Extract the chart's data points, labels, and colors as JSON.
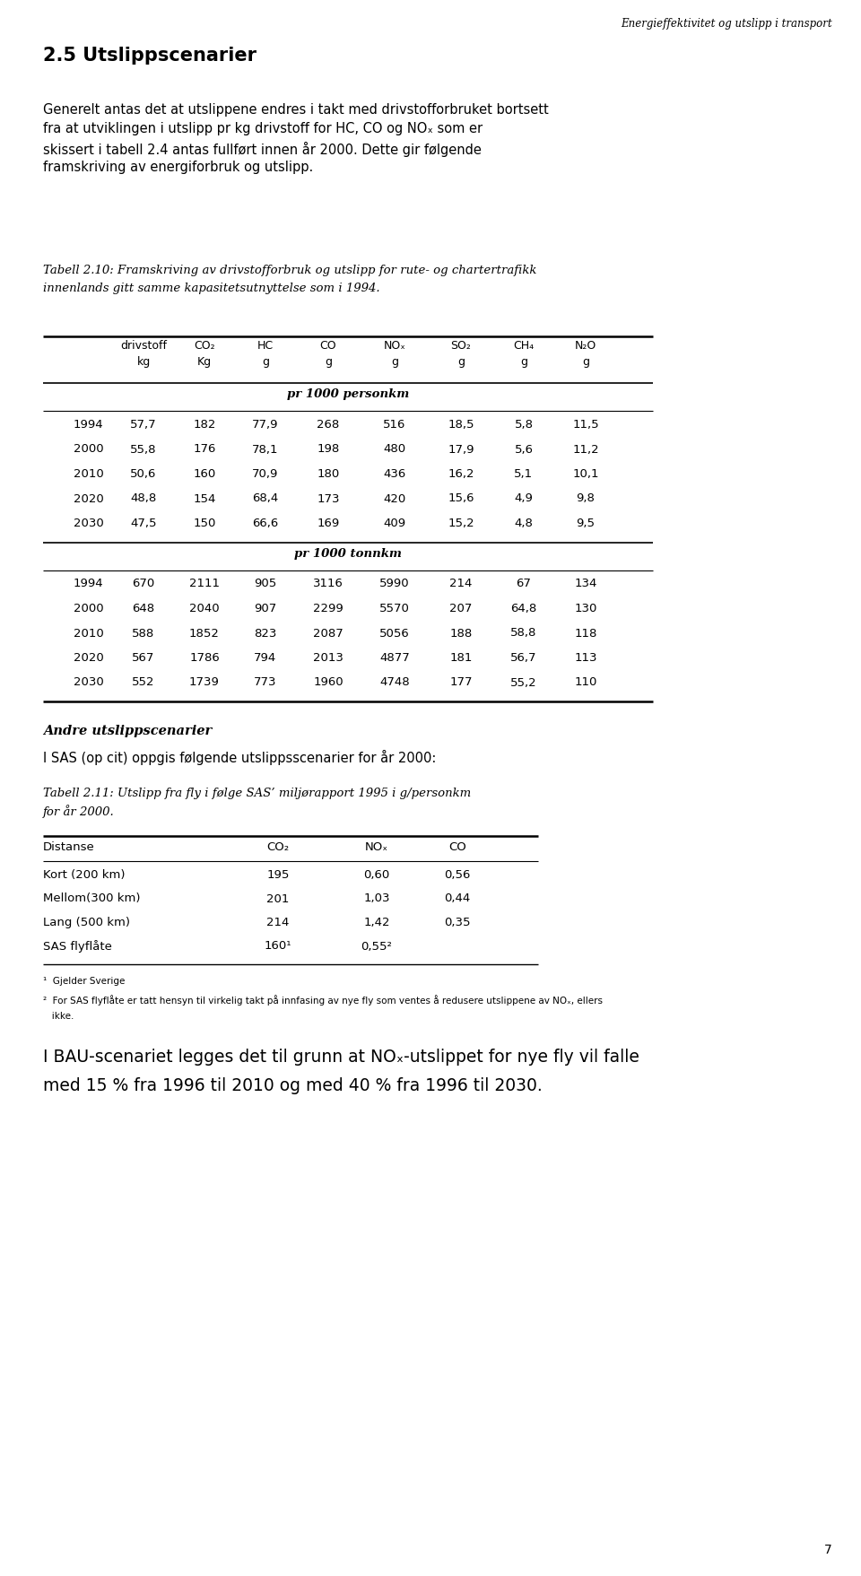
{
  "header_italic": "Energieffektivitet og utslipp i transport",
  "section_title": "2.5 Utslippscenarier",
  "para1_lines": [
    "Generelt antas det at utslippene endres i takt med drivstofforbruket bortsett",
    "fra at utviklingen i utslipp pr kg drivstoff for HC, CO og NOₓ som er",
    "skissert i tabell 2.4 antas fullført innen år 2000. Dette gir følgende",
    "framskriving av energiforbruk og utslipp."
  ],
  "table1_caption_line1": "Tabell 2.10: Framskriving av drivstofforbruk og utslipp for rute- og chartertrafikk",
  "table1_caption_line2": "innenlands gitt samme kapasitetsutnyttelse som i 1994.",
  "col_headers_line1": [
    "drivstoff",
    "CO₂",
    "HC",
    "CO",
    "NOₓ",
    "SO₂",
    "CH₄",
    "N₂O"
  ],
  "col_headers_line2": [
    "kg",
    "Kg",
    "g",
    "g",
    "g",
    "g",
    "g",
    "g"
  ],
  "section_header_pr1000p": "pr 1000 personkm",
  "rows_personkm": [
    [
      "1994",
      "57,7",
      "182",
      "77,9",
      "268",
      "516",
      "18,5",
      "5,8",
      "11,5"
    ],
    [
      "2000",
      "55,8",
      "176",
      "78,1",
      "198",
      "480",
      "17,9",
      "5,6",
      "11,2"
    ],
    [
      "2010",
      "50,6",
      "160",
      "70,9",
      "180",
      "436",
      "16,2",
      "5,1",
      "10,1"
    ],
    [
      "2020",
      "48,8",
      "154",
      "68,4",
      "173",
      "420",
      "15,6",
      "4,9",
      "9,8"
    ],
    [
      "2030",
      "47,5",
      "150",
      "66,6",
      "169",
      "409",
      "15,2",
      "4,8",
      "9,5"
    ]
  ],
  "section_header_pr1000t": "pr 1000 tonnkm",
  "rows_tonnkm": [
    [
      "1994",
      "670",
      "2111",
      "905",
      "3116",
      "5990",
      "214",
      "67",
      "134"
    ],
    [
      "2000",
      "648",
      "2040",
      "907",
      "2299",
      "5570",
      "207",
      "64,8",
      "130"
    ],
    [
      "2010",
      "588",
      "1852",
      "823",
      "2087",
      "5056",
      "188",
      "58,8",
      "118"
    ],
    [
      "2020",
      "567",
      "1786",
      "794",
      "2013",
      "4877",
      "181",
      "56,7",
      "113"
    ],
    [
      "2030",
      "552",
      "1739",
      "773",
      "1960",
      "4748",
      "177",
      "55,2",
      "110"
    ]
  ],
  "andre_title": "Andre utslippscenarier",
  "andre_para": "I SAS (op cit) oppgis følgende utslippsscenarier for år 2000:",
  "table2_caption_line1": "Tabell 2.11: Utslipp fra fly i følge SAS’ miljørapport 1995 i g/personkm",
  "table2_caption_line2": "for år 2000.",
  "table2_col_headers": [
    "Distanse",
    "CO₂",
    "NOₓ",
    "CO"
  ],
  "table2_rows": [
    [
      "Kort (200 km)",
      "195",
      "0,60",
      "0,56"
    ],
    [
      "Mellom(300 km)",
      "201",
      "1,03",
      "0,44"
    ],
    [
      "Lang (500 km)",
      "214",
      "1,42",
      "0,35"
    ],
    [
      "SAS flyflåte",
      "160¹",
      "0,55²",
      ""
    ]
  ],
  "footnote1": "¹  Gjelder Sverige",
  "footnote2": "²  For SAS flyflåte er tatt hensyn til virkelig takt på innfasing av nye fly som ventes å redusere utslippene av NOₓ, ellers",
  "footnote2b": "   ikke.",
  "final_para_line1": "I BAU-scenariet legges det til grunn at NOₓ-utslippet for nye fly vil falle",
  "final_para_line2": "med 15 % fra 1996 til 2010 og med 40 % fra 1996 til 2030.",
  "page_number": "7",
  "bg_color": "#ffffff",
  "text_color": "#000000"
}
